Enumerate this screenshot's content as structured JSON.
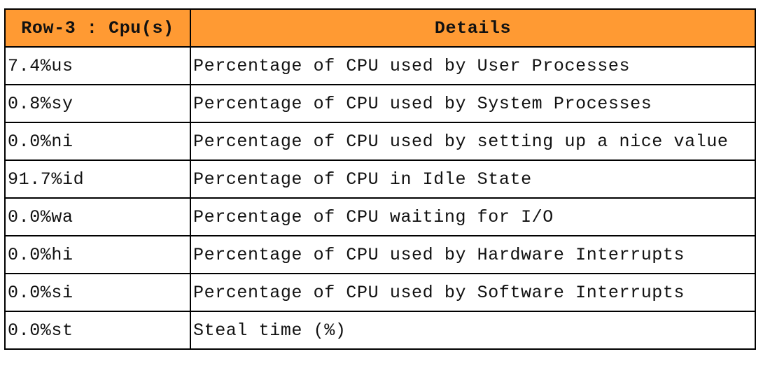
{
  "header": {
    "col1": "Row-3 : Cpu(s)",
    "col2": "Details"
  },
  "header_color": "#ff9a33",
  "rows": [
    {
      "value": "7.4%us",
      "detail": "Percentage of CPU used by User Processes"
    },
    {
      "value": "0.8%sy",
      "detail": "Percentage of CPU used by System Processes"
    },
    {
      "value": "0.0%ni",
      "detail": "Percentage of CPU used by setting up a nice value"
    },
    {
      "value": "91.7%id",
      "detail": "Percentage of CPU in Idle State"
    },
    {
      "value": "0.0%wa",
      "detail": "Percentage of CPU waiting for I/O"
    },
    {
      "value": "0.0%hi",
      "detail": "Percentage of CPU used by Hardware Interrupts"
    },
    {
      "value": "0.0%si",
      "detail": "Percentage of CPU used by Software Interrupts"
    },
    {
      "value": "0.0%st",
      "detail": "Steal time (%)"
    }
  ]
}
